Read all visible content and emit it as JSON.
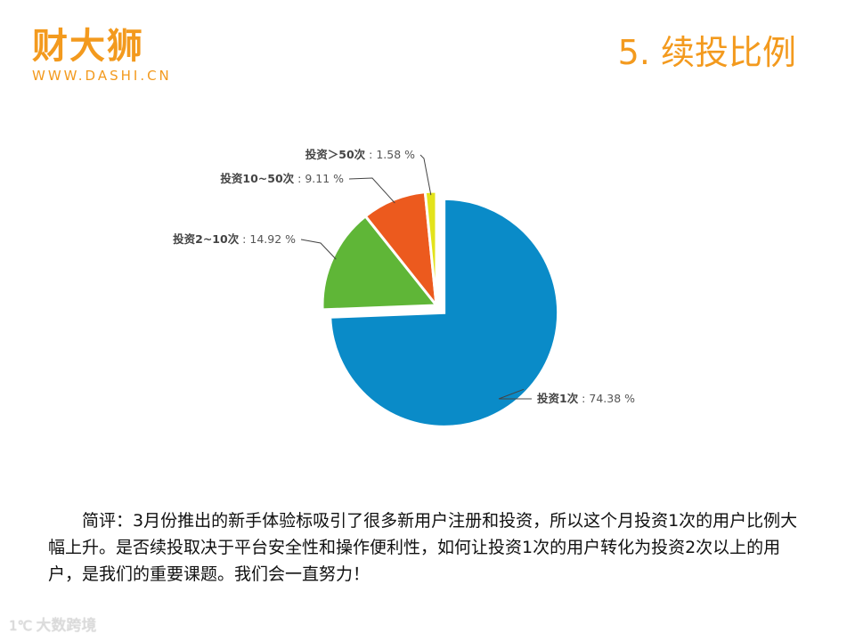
{
  "header": {
    "logo_name": "财大狮",
    "logo_url": "WWW.DASHI.CN",
    "title": "5. 续投比例"
  },
  "colors": {
    "brand": "#f39a1e",
    "slice_1": "#0a8bc8",
    "slice_2": "#5fb637",
    "slice_3": "#ec5a1e",
    "slice_4": "#e3e31b",
    "text": "#111111"
  },
  "chart_data": {
    "type": "pie",
    "title": "",
    "exploded_slice": 0,
    "slices": [
      {
        "label": "投资1次",
        "value": 74.38,
        "value_text": "74.38 %",
        "color": "#0a8bc8"
      },
      {
        "label": "投资2~10次",
        "value": 14.92,
        "value_text": "14.92 %",
        "color": "#5fb637"
      },
      {
        "label": "投资10~50次",
        "value": 9.11,
        "value_text": "9.11 %",
        "color": "#ec5a1e"
      },
      {
        "label": "投资＞50次",
        "value": 1.58,
        "value_text": "1.58 %",
        "color": "#e3e31b"
      }
    ]
  },
  "commentary": "简评：3月份推出的新手体验标吸引了很多新用户注册和投资，所以这个月投资1次的用户比例大幅上升。是否续投取决于平台安全性和操作便利性，如何让投资1次的用户转化为投资2次以上的用户，是我们的重要课题。我们会一直努力！",
  "watermark": {
    "icon": "1tc-icon",
    "text": "大数跨境"
  }
}
